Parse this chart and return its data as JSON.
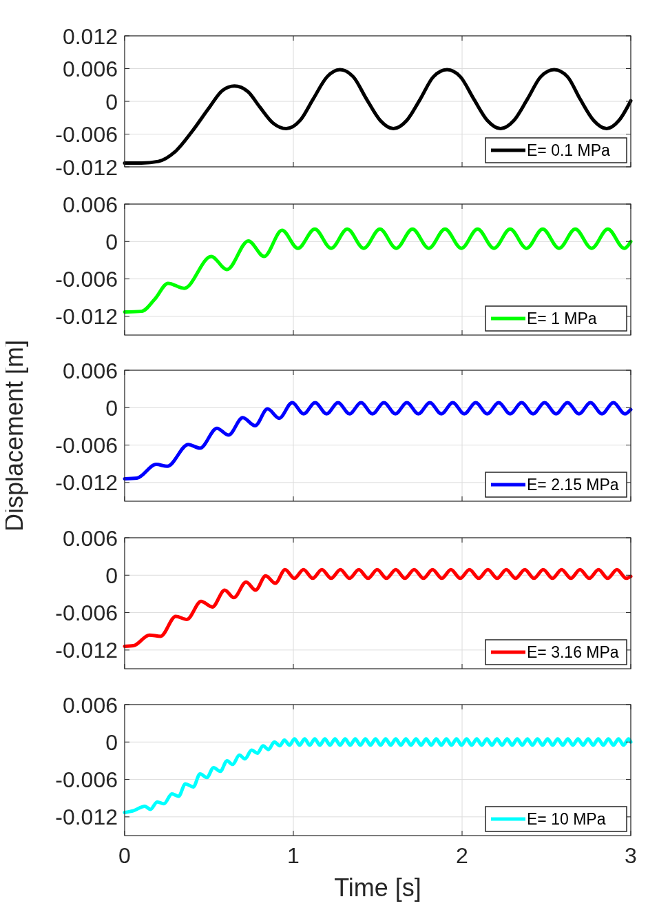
{
  "chart_data": [
    {
      "type": "line",
      "xlim": [
        0,
        3
      ],
      "xticks": [
        0,
        1,
        2,
        3
      ],
      "ylim": [
        -0.012,
        0.012
      ],
      "yticks": [
        -0.012,
        -0.006,
        0,
        0.006,
        0.012
      ],
      "grid": true,
      "legend": "bottom right",
      "tick_labels": "y",
      "x": [
        0,
        0.1,
        0.2,
        0.3,
        0.4,
        0.5,
        0.58,
        0.651,
        0.73,
        0.8,
        0.88,
        0.958,
        1.04,
        1.117,
        1.2,
        1.276,
        1.355,
        1.434,
        1.515,
        1.593,
        1.672,
        1.752,
        1.83,
        1.911,
        1.99,
        2.07,
        2.15,
        2.228,
        2.307,
        2.387,
        2.466,
        2.546,
        2.625,
        2.7,
        2.78,
        2.857,
        2.93,
        3.0
      ],
      "series": [
        {
          "name": "E= 0.1 MPa",
          "color": "#000000",
          "values": [
            -0.0113,
            -0.0113,
            -0.011,
            -0.0092,
            -0.0055,
            -0.0012,
            0.002,
            0.0028,
            0.0018,
            -0.001,
            -0.004,
            -0.005,
            -0.0035,
            0.0004,
            0.0045,
            0.0058,
            0.0045,
            0.0004,
            -0.0035,
            -0.005,
            -0.0035,
            0.0004,
            0.0045,
            0.0058,
            0.0045,
            0.0004,
            -0.0035,
            -0.005,
            -0.0035,
            0.0004,
            0.0045,
            0.0058,
            0.0045,
            0.0004,
            -0.0035,
            -0.005,
            -0.0035,
            0.0001
          ]
        }
      ]
    },
    {
      "type": "line",
      "xlim": [
        0,
        3
      ],
      "xticks": [
        0,
        1,
        2,
        3
      ],
      "ylim": [
        -0.015,
        0.006
      ],
      "yticks": [
        -0.012,
        -0.006,
        0,
        0.006
      ],
      "grid": true,
      "legend": "bottom right",
      "tick_labels": "y",
      "x": [
        0,
        0.1,
        0.18,
        0.257,
        0.353,
        0.513,
        0.607,
        0.733,
        0.827,
        0.933,
        1.027,
        1.127,
        1.224,
        1.32,
        1.417,
        1.513,
        1.61,
        1.706,
        1.803,
        1.899,
        1.996,
        2.092,
        2.189,
        2.285,
        2.382,
        2.478,
        2.575,
        2.671,
        2.768,
        2.864,
        2.961,
        3.0
      ],
      "series": [
        {
          "name": "E= 1 MPa",
          "color": "#00ff00",
          "values": [
            -0.0113,
            -0.0112,
            -0.0092,
            -0.0067,
            -0.0075,
            -0.0024,
            -0.0045,
            0.0001,
            -0.0024,
            0.0018,
            -0.0011,
            0.002,
            -0.0011,
            0.002,
            -0.0011,
            0.002,
            -0.0011,
            0.002,
            -0.0011,
            0.002,
            -0.0011,
            0.002,
            -0.0011,
            0.002,
            -0.0011,
            0.002,
            -0.0011,
            0.002,
            -0.0011,
            0.002,
            -0.0011,
            0
          ]
        }
      ]
    },
    {
      "type": "line",
      "xlim": [
        0,
        3
      ],
      "xticks": [
        0,
        1,
        2,
        3
      ],
      "ylim": [
        -0.015,
        0.006
      ],
      "yticks": [
        -0.012,
        -0.006,
        0,
        0.006
      ],
      "grid": true,
      "legend": "bottom right",
      "tick_labels": "y",
      "ylabel": "Displacement [m]",
      "x": [
        0,
        0.073,
        0.187,
        0.253,
        0.377,
        0.447,
        0.547,
        0.616,
        0.7,
        0.773,
        0.847,
        0.916,
        0.993,
        1.061,
        1.129,
        1.197,
        1.265,
        1.333,
        1.401,
        1.469,
        1.537,
        1.605,
        1.673,
        1.741,
        1.809,
        1.877,
        1.945,
        2.013,
        2.081,
        2.149,
        2.217,
        2.285,
        2.353,
        2.421,
        2.489,
        2.557,
        2.625,
        2.693,
        2.761,
        2.829,
        2.897,
        2.965,
        3.0
      ],
      "series": [
        {
          "name": "E= 2.15 MPa",
          "color": "#0000ff",
          "values": [
            -0.0114,
            -0.0113,
            -0.0091,
            -0.0094,
            -0.0059,
            -0.0065,
            -0.0033,
            -0.0044,
            -0.0016,
            -0.0029,
            -0.0002,
            -0.0017,
            0.0008,
            -0.001,
            0.0008,
            -0.001,
            0.0008,
            -0.001,
            0.0008,
            -0.001,
            0.0008,
            -0.001,
            0.0008,
            -0.001,
            0.0008,
            -0.001,
            0.0008,
            -0.001,
            0.0008,
            -0.001,
            0.0008,
            -0.001,
            0.0008,
            -0.001,
            0.0008,
            -0.001,
            0.0008,
            -0.001,
            0.0008,
            -0.001,
            0.0008,
            -0.001,
            -0.0003
          ]
        }
      ]
    },
    {
      "type": "line",
      "xlim": [
        0,
        3
      ],
      "xticks": [
        0,
        1,
        2,
        3
      ],
      "ylim": [
        -0.015,
        0.006
      ],
      "yticks": [
        -0.012,
        -0.006,
        0,
        0.006
      ],
      "grid": true,
      "legend": "bottom right",
      "tick_labels": "y",
      "x": [
        0,
        0.053,
        0.147,
        0.213,
        0.303,
        0.369,
        0.453,
        0.52,
        0.593,
        0.647,
        0.72,
        0.776,
        0.836,
        0.893,
        0.951,
        1.006,
        1.06,
        1.115,
        1.169,
        1.224,
        1.279,
        1.333,
        1.388,
        1.443,
        1.497,
        1.552,
        1.607,
        1.661,
        1.716,
        1.771,
        1.825,
        1.88,
        1.934,
        1.989,
        2.044,
        2.099,
        2.153,
        2.208,
        2.262,
        2.317,
        2.372,
        2.426,
        2.481,
        2.536,
        2.59,
        2.645,
        2.699,
        2.754,
        2.809,
        2.863,
        2.918,
        2.973,
        3.0
      ],
      "series": [
        {
          "name": "E= 3.16 MPa",
          "color": "#ff0000",
          "values": [
            -0.0114,
            -0.0113,
            -0.0096,
            -0.0098,
            -0.0066,
            -0.0071,
            -0.0042,
            -0.0051,
            -0.0024,
            -0.0036,
            -0.0011,
            -0.0024,
            -0.0001,
            -0.0013,
            0.0009,
            -0.0005,
            0.0009,
            -0.0005,
            0.0009,
            -0.0005,
            0.0009,
            -0.0005,
            0.0009,
            -0.0005,
            0.0009,
            -0.0005,
            0.0009,
            -0.0005,
            0.0009,
            -0.0005,
            0.0009,
            -0.0005,
            0.0009,
            -0.0005,
            0.0009,
            -0.0005,
            0.0009,
            -0.0005,
            0.0009,
            -0.0005,
            0.0009,
            -0.0005,
            0.0009,
            -0.0005,
            0.0009,
            -0.0005,
            0.0009,
            -0.0005,
            0.0009,
            -0.0005,
            0.0009,
            -0.0005,
            -0.0002
          ]
        }
      ]
    },
    {
      "type": "line",
      "xlim": [
        0,
        3
      ],
      "xticks": [
        0,
        1,
        2,
        3
      ],
      "ylim": [
        -0.015,
        0.006
      ],
      "yticks": [
        -0.012,
        -0.006,
        0,
        0.006
      ],
      "grid": true,
      "legend": "bottom right",
      "xlabel": "Time [s]",
      "x": [
        0,
        0.053,
        0.12,
        0.153,
        0.193,
        0.233,
        0.28,
        0.32,
        0.36,
        0.407,
        0.447,
        0.487,
        0.527,
        0.567,
        0.607,
        0.64,
        0.68,
        0.713,
        0.753,
        0.787,
        0.82,
        0.853,
        0.887,
        0.92,
        0.947,
        0.977,
        1.007,
        1.037,
        1.067,
        1.097,
        1.127,
        1.157,
        1.187,
        1.217,
        1.247,
        1.277,
        1.307,
        1.337,
        1.367,
        1.397,
        1.427,
        1.457,
        1.487,
        1.517,
        1.547,
        1.577,
        1.607,
        1.637,
        1.667,
        1.697,
        1.727,
        1.757,
        1.787,
        1.817,
        1.847,
        1.877,
        1.907,
        1.937,
        1.967,
        1.997,
        2.027,
        2.057,
        2.087,
        2.117,
        2.147,
        2.177,
        2.207,
        2.237,
        2.267,
        2.297,
        2.327,
        2.357,
        2.387,
        2.417,
        2.447,
        2.477,
        2.507,
        2.537,
        2.567,
        2.597,
        2.627,
        2.657,
        2.687,
        2.717,
        2.747,
        2.777,
        2.807,
        2.837,
        2.867,
        2.897,
        2.927,
        2.957,
        2.987,
        3.0
      ],
      "series": [
        {
          "name": "E= 10 MPa",
          "color": "#00ffff",
          "values": [
            -0.0113,
            -0.011,
            -0.0103,
            -0.0108,
            -0.0096,
            -0.0099,
            -0.0083,
            -0.0087,
            -0.0067,
            -0.0072,
            -0.0051,
            -0.0057,
            -0.0041,
            -0.0047,
            -0.003,
            -0.0036,
            -0.0021,
            -0.0027,
            -0.0013,
            -0.0018,
            -0.0006,
            -0.0012,
            0,
            -0.0006,
            0.0003,
            -0.0005,
            0.0005,
            -0.0005,
            0.0005,
            -0.0005,
            0.0005,
            -0.0005,
            0.0005,
            -0.0005,
            0.0005,
            -0.0005,
            0.0005,
            -0.0005,
            0.0005,
            -0.0005,
            0.0005,
            -0.0005,
            0.0005,
            -0.0005,
            0.0005,
            -0.0005,
            0.0005,
            -0.0005,
            0.0005,
            -0.0005,
            0.0005,
            -0.0005,
            0.0005,
            -0.0005,
            0.0005,
            -0.0005,
            0.0005,
            -0.0005,
            0.0005,
            -0.0005,
            0.0005,
            -0.0005,
            0.0005,
            -0.0005,
            0.0005,
            -0.0005,
            0.0005,
            -0.0005,
            0.0005,
            -0.0005,
            0.0005,
            -0.0005,
            0.0005,
            -0.0005,
            0.0005,
            -0.0005,
            0.0005,
            -0.0005,
            0.0005,
            -0.0005,
            0.0005,
            -0.0005,
            0.0005,
            -0.0005,
            0.0005,
            -0.0005,
            0.0005,
            -0.0005,
            0.0005,
            -0.0005,
            0.0005,
            -0.0005,
            0.0005,
            0
          ]
        }
      ]
    }
  ]
}
